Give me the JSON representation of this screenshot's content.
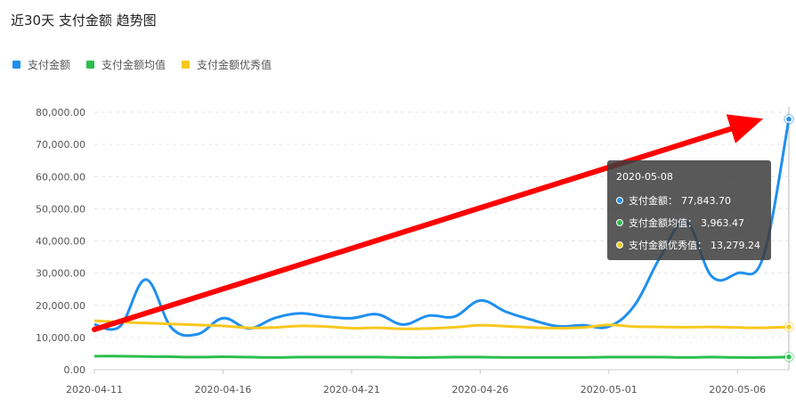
{
  "header": {
    "title": "近30天 支付金额 趋势图"
  },
  "colors": {
    "pay": "#1f8ff0",
    "avg": "#2cbe4e",
    "excellent": "#f7c81e",
    "arrow": "#ff0000",
    "grid": "#e6e6e6",
    "axis_text": "#555555"
  },
  "legend": {
    "items": [
      {
        "label": "支付金额",
        "color": "#1f8ff0",
        "icon": "legend-square-icon"
      },
      {
        "label": "支付金额均值",
        "color": "#2cbe4e",
        "icon": "legend-square-icon"
      },
      {
        "label": "支付金额优秀值",
        "color": "#f7c81e",
        "icon": "legend-square-icon"
      }
    ]
  },
  "tooltip": {
    "date": "2020-05-08",
    "rows": [
      {
        "label": "支付金额：",
        "value": "77,843.70",
        "color": "#1f8ff0"
      },
      {
        "label": "支付金额均值：",
        "value": "3,963.47",
        "color": "#2cbe4e"
      },
      {
        "label": "支付金额优秀值：",
        "value": "13,279.24",
        "color": "#f7c81e"
      }
    ]
  },
  "chart_data": {
    "type": "line",
    "ylim": [
      0,
      80000
    ],
    "y_ticks": [
      0,
      10000,
      20000,
      30000,
      40000,
      50000,
      60000,
      70000,
      80000
    ],
    "y_tick_labels": [
      "0.00",
      "10,000.00",
      "20,000.00",
      "30,000.00",
      "40,000.00",
      "50,000.00",
      "60,000.00",
      "70,000.00",
      "80,000.00"
    ],
    "x": [
      "2020-04-11",
      "2020-04-12",
      "2020-04-13",
      "2020-04-14",
      "2020-04-15",
      "2020-04-16",
      "2020-04-17",
      "2020-04-18",
      "2020-04-19",
      "2020-04-20",
      "2020-04-21",
      "2020-04-22",
      "2020-04-23",
      "2020-04-24",
      "2020-04-25",
      "2020-04-26",
      "2020-04-27",
      "2020-04-28",
      "2020-04-29",
      "2020-04-30",
      "2020-05-01",
      "2020-05-02",
      "2020-05-03",
      "2020-05-04",
      "2020-05-05",
      "2020-05-06",
      "2020-05-07",
      "2020-05-08"
    ],
    "x_tick_labels": [
      "2020-04-11",
      "2020-04-16",
      "2020-04-21",
      "2020-04-26",
      "2020-05-01",
      "2020-05-06"
    ],
    "x_tick_indices": [
      0,
      5,
      10,
      15,
      20,
      25
    ],
    "grid": true,
    "legend_position": "top-left",
    "series": [
      {
        "name": "支付金额",
        "color": "#1f8ff0",
        "values": [
          14000,
          13500,
          28000,
          13000,
          11000,
          16000,
          12800,
          16000,
          17500,
          16500,
          16000,
          17200,
          14000,
          16800,
          16500,
          21500,
          18000,
          15500,
          13500,
          13800,
          13400,
          20000,
          35000,
          46000,
          29000,
          30000,
          35000,
          77843.7
        ]
      },
      {
        "name": "支付金额均值",
        "color": "#2cbe4e",
        "values": [
          4200,
          4200,
          4100,
          4000,
          3900,
          4000,
          3900,
          3800,
          3900,
          3900,
          3900,
          3900,
          3800,
          3800,
          3900,
          3900,
          3800,
          3800,
          3800,
          3800,
          3900,
          3900,
          3900,
          3800,
          3900,
          3800,
          3800,
          3963.47
        ]
      },
      {
        "name": "支付金额优秀值",
        "color": "#f7c81e",
        "values": [
          15200,
          14800,
          14500,
          14200,
          13900,
          13600,
          13000,
          13100,
          13600,
          13400,
          12900,
          13000,
          12700,
          12800,
          13200,
          13800,
          13500,
          13100,
          12900,
          13100,
          13900,
          13400,
          13300,
          13200,
          13300,
          13100,
          13000,
          13279.24
        ]
      }
    ],
    "arrow_annotation": {
      "from": {
        "x": "2020-04-11",
        "y": 12500
      },
      "to": {
        "x": "2020-05-07",
        "y": 78000
      }
    },
    "highlight_x": "2020-05-08"
  }
}
